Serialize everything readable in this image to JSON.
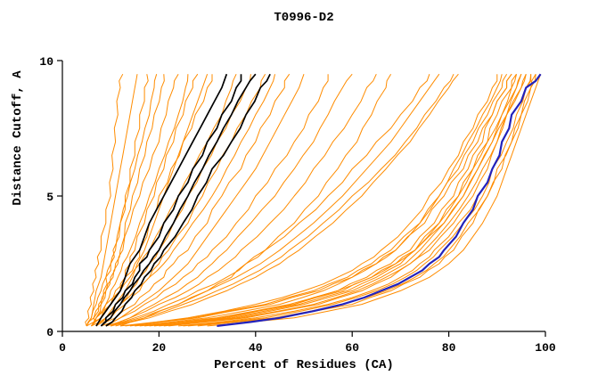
{
  "chart_data": {
    "type": "line",
    "title": "T0996-D2",
    "xlabel": "Percent of Residues (CA)",
    "ylabel": "Distance Cutoff, A",
    "xlim": [
      0,
      100
    ],
    "ylim": [
      0,
      10
    ],
    "xticks": [
      0,
      20,
      40,
      60,
      80,
      100
    ],
    "yticks": [
      0,
      5,
      10
    ],
    "grid": false,
    "legend": "none",
    "colors": {
      "predictions": "#ff8c00",
      "highlighted": "#000000",
      "best_model": "#2222bb",
      "axis": "#000000"
    },
    "y_samples": [
      0.2,
      0.5,
      1,
      1.5,
      2,
      2.5,
      3,
      4,
      5,
      6,
      7,
      8,
      9,
      9.5
    ],
    "groups": [
      {
        "name": "orange-prediction-curve",
        "color": "#ff8c00",
        "width": 1,
        "curves": [
          [
            5,
            5.5,
            6,
            6.5,
            7,
            7.5,
            8,
            9,
            10,
            10.5,
            11,
            11.5,
            12,
            12.5
          ],
          [
            5,
            6,
            6.5,
            7,
            8,
            8.5,
            9,
            10,
            11,
            12,
            13,
            14,
            15,
            15.5
          ],
          [
            6,
            6.5,
            7.5,
            8.5,
            9,
            10,
            10.5,
            12,
            13,
            14,
            15,
            16,
            17,
            17.5
          ],
          [
            5,
            6,
            7,
            8,
            9,
            10,
            11,
            12,
            13.5,
            15,
            16.5,
            18,
            19,
            19.5
          ],
          [
            6,
            7,
            8,
            9,
            10,
            11,
            12,
            13,
            14.5,
            16,
            17.5,
            19,
            20.5,
            21
          ],
          [
            5,
            6.5,
            8,
            9,
            10.5,
            11.5,
            12.5,
            14,
            16,
            18,
            20,
            21.5,
            23,
            24
          ],
          [
            6,
            7,
            9,
            10,
            11.5,
            12.5,
            14,
            16,
            18,
            20,
            22,
            24,
            25.5,
            26
          ],
          [
            6,
            8,
            10,
            12,
            13,
            14,
            15,
            17,
            19,
            21,
            23,
            25,
            27,
            28
          ],
          [
            7,
            9,
            11,
            13,
            14.5,
            15.5,
            17,
            19,
            21,
            23,
            25,
            27,
            29,
            30
          ],
          [
            5,
            7,
            9,
            11,
            13,
            15,
            16,
            18,
            20,
            22.5,
            25,
            27.5,
            30,
            31
          ],
          [
            6,
            8,
            10,
            12,
            14,
            16,
            18,
            21,
            24,
            27,
            30,
            33,
            35,
            36
          ],
          [
            7,
            9,
            12,
            14,
            16,
            18,
            20,
            23,
            26,
            29,
            32,
            35,
            38,
            39
          ],
          [
            8,
            10,
            13,
            16,
            18,
            20,
            22,
            26,
            29,
            32,
            35,
            38,
            41,
            42
          ],
          [
            6,
            9,
            12,
            15,
            18,
            21,
            23,
            27,
            31,
            34,
            37,
            40,
            43,
            44
          ],
          [
            8,
            11,
            15,
            18,
            21,
            23,
            26,
            30,
            33,
            37,
            40,
            43,
            46,
            47
          ],
          [
            9,
            12,
            16,
            20,
            23,
            26,
            28,
            32,
            36,
            40,
            43,
            46,
            49,
            50
          ],
          [
            8,
            12,
            17,
            21,
            25,
            28,
            31,
            36,
            40,
            44,
            48,
            51,
            54,
            55
          ],
          [
            10,
            14,
            19,
            24,
            28,
            31,
            34,
            39,
            44,
            48,
            52,
            55,
            58,
            60
          ],
          [
            9,
            14,
            20,
            26,
            30,
            34,
            37,
            43,
            48,
            52,
            56,
            60,
            63,
            65
          ],
          [
            12,
            17,
            24,
            30,
            35,
            38,
            42,
            48,
            53,
            57,
            61,
            64,
            67,
            68
          ],
          [
            15,
            30,
            45,
            54,
            60,
            65,
            69,
            74,
            78,
            81,
            84,
            87,
            90,
            91
          ],
          [
            18,
            33,
            48,
            57,
            63,
            68,
            72,
            77,
            81,
            84,
            87,
            89,
            92,
            93
          ],
          [
            20,
            36,
            50,
            60,
            66,
            71,
            74,
            79,
            83,
            86,
            89,
            91,
            94,
            95
          ],
          [
            12,
            26,
            40,
            50,
            57,
            62,
            66,
            72,
            76,
            80,
            83,
            86,
            89,
            90
          ],
          [
            22,
            38,
            53,
            62,
            68,
            72,
            76,
            81,
            85,
            88,
            90,
            92,
            95,
            96
          ],
          [
            25,
            42,
            56,
            65,
            71,
            75,
            78,
            83,
            87,
            89,
            92,
            94,
            96,
            97
          ],
          [
            28,
            45,
            60,
            68,
            74,
            78,
            81,
            85,
            88,
            91,
            93,
            95,
            97,
            98
          ],
          [
            16,
            32,
            47,
            57,
            64,
            69,
            73,
            78,
            82,
            85,
            88,
            91,
            93,
            94
          ],
          [
            14,
            28,
            43,
            53,
            60,
            65,
            69,
            75,
            79,
            83,
            86,
            89,
            92,
            93
          ],
          [
            30,
            48,
            62,
            70,
            76,
            80,
            83,
            87,
            90,
            92,
            94,
            96,
            98,
            99
          ],
          [
            24,
            40,
            55,
            64,
            70,
            74,
            77,
            82,
            86,
            89,
            91,
            93,
            96,
            97
          ],
          [
            19,
            35,
            49,
            59,
            65,
            70,
            73,
            79,
            83,
            86,
            89,
            92,
            94,
            95
          ],
          [
            26,
            44,
            58,
            67,
            73,
            77,
            80,
            84,
            88,
            90,
            93,
            95,
            97,
            98
          ],
          [
            13,
            27,
            42,
            52,
            59,
            64,
            68,
            74,
            78,
            82,
            85,
            88,
            91,
            92
          ],
          [
            21,
            37,
            52,
            61,
            67,
            72,
            75,
            80,
            84,
            87,
            90,
            92,
            95,
            96
          ],
          [
            17,
            34,
            48,
            58,
            64,
            69,
            73,
            78,
            82,
            85,
            88,
            90,
            93,
            94
          ],
          [
            10,
            16,
            24,
            30,
            36,
            41,
            45,
            52,
            58,
            63,
            68,
            72,
            76,
            78
          ],
          [
            9,
            15,
            22,
            28,
            34,
            38,
            42,
            49,
            55,
            60,
            65,
            70,
            74,
            76
          ],
          [
            11,
            18,
            27,
            34,
            40,
            45,
            49,
            56,
            62,
            67,
            72,
            76,
            80,
            82
          ],
          [
            10,
            17,
            25,
            32,
            38,
            43,
            47,
            54,
            60,
            66,
            71,
            75,
            79,
            81
          ]
        ]
      },
      {
        "name": "black-highlighted-curve",
        "color": "#000000",
        "width": 1.7,
        "curves": [
          [
            7,
            8,
            10,
            12,
            13,
            14,
            16,
            18,
            21,
            24,
            27,
            30,
            33,
            34
          ],
          [
            8,
            9,
            11,
            13,
            15,
            16,
            18,
            21,
            24,
            27,
            30,
            33,
            36,
            37
          ],
          [
            8,
            10,
            12,
            14,
            16,
            18,
            20,
            23,
            26,
            29,
            32,
            35,
            38,
            40
          ],
          [
            9,
            11,
            13,
            15,
            17,
            19,
            21,
            25,
            28,
            31,
            35,
            38,
            41,
            43
          ]
        ]
      },
      {
        "name": "blue-best-model-curve",
        "color": "#2222bb",
        "width": 2.2,
        "curves": [
          [
            32,
            45,
            58,
            66,
            72,
            76,
            79,
            83,
            86,
            89,
            91,
            93,
            96,
            99
          ]
        ]
      }
    ]
  }
}
